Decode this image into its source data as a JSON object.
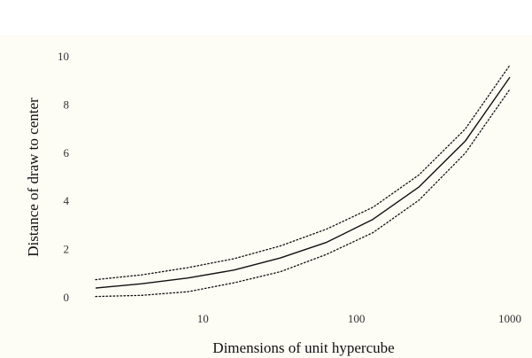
{
  "chart_data": {
    "type": "line",
    "xlabel": "Dimensions of unit hypercube",
    "ylabel": "Distance of draw to center",
    "x_scale": "log",
    "xlim": [
      2,
      1000
    ],
    "ylim": [
      0,
      10
    ],
    "x_ticks": [
      10,
      100,
      1000
    ],
    "x_tick_labels": [
      "10",
      "100",
      "1000"
    ],
    "y_ticks": [
      0,
      2,
      4,
      6,
      8,
      10
    ],
    "y_tick_labels": [
      "0",
      "2",
      "4",
      "6",
      "8",
      "10"
    ],
    "grid": false,
    "legend": "none",
    "x": [
      2,
      4,
      8,
      16,
      32,
      64,
      128,
      256,
      512,
      1000
    ],
    "series": [
      {
        "style": "solid",
        "values": [
          0.4,
          0.58,
          0.82,
          1.15,
          1.65,
          2.3,
          3.25,
          4.6,
          6.5,
          9.15
        ]
      },
      {
        "style": "dotted",
        "values": [
          0.75,
          0.95,
          1.25,
          1.62,
          2.15,
          2.85,
          3.75,
          5.1,
          7.0,
          9.65
        ]
      },
      {
        "style": "dotted",
        "values": [
          0.05,
          0.1,
          0.25,
          0.62,
          1.08,
          1.8,
          2.7,
          4.05,
          6.0,
          8.65
        ]
      }
    ],
    "colors": {
      "background": "#fdfcf5",
      "line": "#111111",
      "text": "#333333"
    }
  }
}
